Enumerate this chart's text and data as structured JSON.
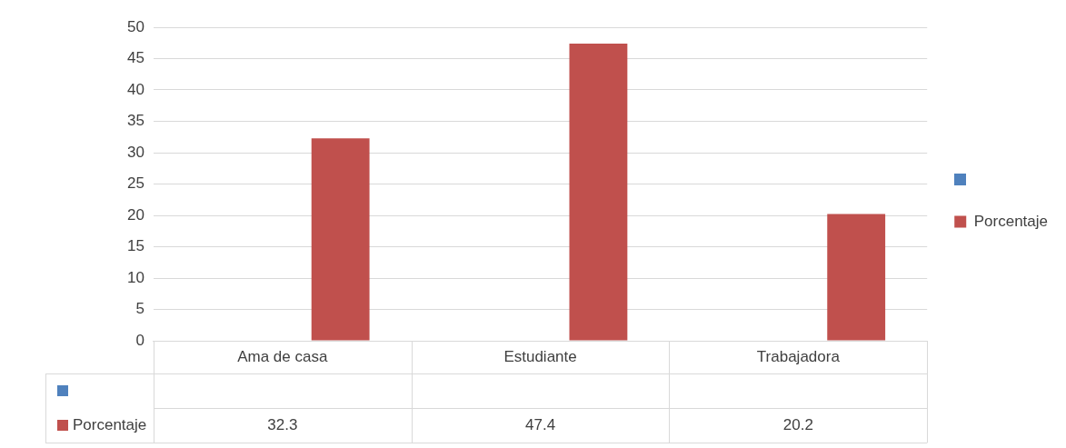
{
  "chart_data": {
    "type": "bar",
    "categories": [
      "Ama de casa",
      "Estudiante",
      "Trabajadora"
    ],
    "series": [
      {
        "color": "#4f81bd",
        "values": [
          null,
          null,
          null
        ]
      },
      {
        "name": "Porcentaje",
        "color": "#c0504d",
        "values": [
          32.3,
          47.4,
          20.2
        ]
      }
    ],
    "ylim": [
      0,
      50
    ],
    "yticks": [
      0,
      5,
      10,
      15,
      20,
      25,
      30,
      35,
      40,
      45,
      50
    ],
    "grid": "y",
    "legend": "right",
    "data_labels": true
  }
}
